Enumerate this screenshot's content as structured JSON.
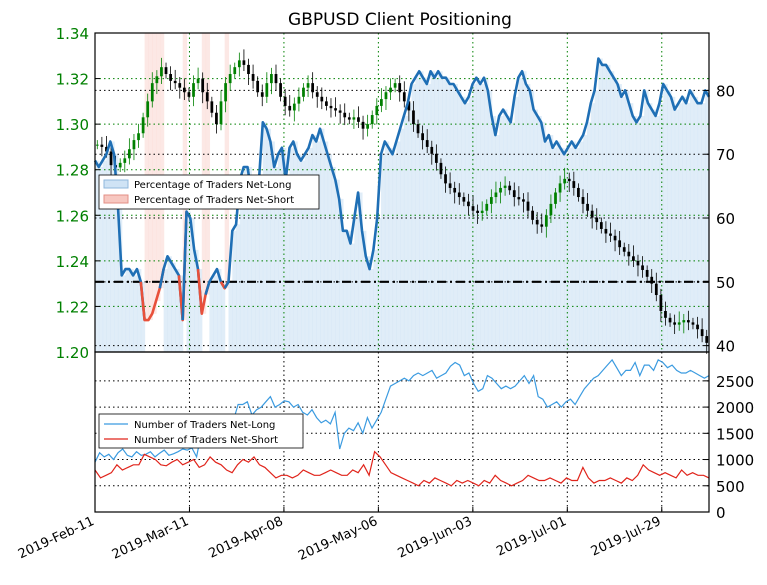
{
  "chart_data": [
    {
      "type": "line",
      "title": "GBPUSD Client Positioning",
      "x_ticks": [
        "2019-Feb-11",
        "2019-Mar-11",
        "2019-Apr-08",
        "2019-May-06",
        "2019-Jun-03",
        "2019-Jul-01",
        "2019-Jul-29"
      ],
      "x_range": [
        "2019-Feb-11",
        "2019-Aug-12"
      ],
      "left_axis": {
        "ticks": [
          "1.20",
          "1.22",
          "1.24",
          "1.26",
          "1.28",
          "1.30",
          "1.32",
          "1.34"
        ],
        "ylim": [
          1.2,
          1.34
        ],
        "color": "#008000"
      },
      "right_axis": {
        "ticks": [
          "40",
          "50",
          "60",
          "70",
          "80"
        ],
        "ylim": [
          39,
          89
        ]
      },
      "reference_line": {
        "value": 50,
        "style": "dash-dot"
      },
      "legend": {
        "placement": "left",
        "entries": [
          "Percentage of Traders Net-Long",
          "Percentage of Traders Net-Short"
        ]
      },
      "colors": {
        "net_long": "#1f6fb5",
        "net_short": "#e8503a",
        "bull": "#008000",
        "bear": "#000000",
        "long_fill": "#d6e7f5",
        "short_fill": "#fbe0dc"
      },
      "price": [
        1.291,
        1.29,
        1.288,
        1.282,
        1.281,
        1.283,
        1.285,
        1.289,
        1.293,
        1.296,
        1.303,
        1.31,
        1.318,
        1.321,
        1.325,
        1.322,
        1.319,
        1.318,
        1.316,
        1.314,
        1.312,
        1.318,
        1.32,
        1.314,
        1.31,
        1.305,
        1.3,
        1.31,
        1.318,
        1.322,
        1.325,
        1.328,
        1.326,
        1.322,
        1.319,
        1.314,
        1.312,
        1.318,
        1.322,
        1.318,
        1.312,
        1.308,
        1.306,
        1.309,
        1.312,
        1.316,
        1.318,
        1.314,
        1.312,
        1.31,
        1.308,
        1.307,
        1.306,
        1.305,
        1.303,
        1.302,
        1.303,
        1.301,
        1.298,
        1.3,
        1.304,
        1.308,
        1.311,
        1.314,
        1.316,
        1.318,
        1.314,
        1.31,
        1.306,
        1.3,
        1.296,
        1.293,
        1.29,
        1.287,
        1.283,
        1.278,
        1.274,
        1.272,
        1.27,
        1.268,
        1.266,
        1.264,
        1.262,
        1.261,
        1.262,
        1.265,
        1.268,
        1.27,
        1.272,
        1.273,
        1.271,
        1.268,
        1.267,
        1.266,
        1.262,
        1.258,
        1.256,
        1.255,
        1.26,
        1.265,
        1.27,
        1.274,
        1.276,
        1.275,
        1.272,
        1.268,
        1.265,
        1.262,
        1.259,
        1.257,
        1.254,
        1.252,
        1.251,
        1.249,
        1.246,
        1.244,
        1.242,
        1.24,
        1.238,
        1.236,
        1.233,
        1.23,
        1.225,
        1.218,
        1.215,
        1.213,
        1.212,
        1.213,
        1.214,
        1.213,
        1.212,
        1.21,
        1.207,
        1.204
      ],
      "net_long_pct": [
        69,
        68,
        69,
        70,
        72,
        70,
        62,
        51,
        52,
        52,
        51,
        52,
        50,
        44,
        44,
        45,
        47,
        49,
        52,
        54,
        53,
        52,
        51,
        44,
        61,
        60,
        55,
        52,
        45,
        48,
        50,
        51,
        52,
        50,
        49,
        50,
        58,
        59,
        66,
        68,
        68,
        64,
        63,
        66,
        75,
        74,
        72,
        68,
        70,
        71,
        66,
        71,
        72,
        70,
        69,
        70,
        71,
        73,
        72,
        74,
        72,
        70,
        68,
        66,
        63,
        58,
        58,
        56,
        60,
        64,
        58,
        54,
        52,
        55,
        60,
        70,
        72,
        71,
        70,
        72,
        74,
        76,
        78,
        81,
        82,
        83,
        82,
        81,
        83,
        82,
        83,
        82,
        82,
        81,
        81,
        80,
        79,
        78,
        79,
        81,
        82,
        81,
        82,
        80,
        76,
        73,
        76,
        77,
        76,
        75,
        79,
        82,
        83,
        81,
        80,
        77,
        76,
        75,
        72,
        73,
        71,
        72,
        71,
        70,
        71,
        72,
        71,
        72,
        73,
        75,
        78,
        80,
        85,
        84,
        84,
        83,
        82,
        81,
        79,
        80,
        78,
        76,
        75,
        76,
        80,
        78,
        77,
        76,
        78,
        81,
        80,
        79,
        77,
        78,
        79,
        78,
        80,
        79,
        78,
        78,
        80,
        79
      ],
      "net_long_count": [
        950,
        1130,
        1050,
        1100,
        1000,
        1130,
        1200,
        1080,
        1050,
        1150,
        1080,
        1100,
        1150,
        1050,
        1120,
        1180,
        1080,
        1110,
        1150,
        1200,
        1180,
        1220,
        1050,
        1500,
        1400,
        1450,
        1300,
        1500,
        1480,
        1550,
        1750,
        2050,
        2050,
        2100,
        1850,
        1950,
        2000,
        2100,
        2200,
        2000,
        2050,
        2120,
        2100,
        2000,
        2050,
        1900,
        1850,
        1950,
        1800,
        1700,
        1750,
        1680,
        1900,
        1200,
        1500,
        1600,
        1550,
        1700,
        1500,
        1800,
        1600,
        1750,
        1900,
        2150,
        2400,
        2450,
        2500,
        2550,
        2500,
        2600,
        2650,
        2600,
        2650,
        2700,
        2550,
        2600,
        2650,
        2780,
        2850,
        2800,
        2600,
        2650,
        2450,
        2300,
        2350,
        2600,
        2550,
        2450,
        2350,
        2400,
        2350,
        2400,
        2500,
        2600,
        2450,
        2600,
        2200,
        2150,
        2000,
        2050,
        2100,
        2000,
        2100,
        2150,
        2050,
        2200,
        2350,
        2450,
        2550,
        2600,
        2700,
        2800,
        2900,
        2750,
        2600,
        2700,
        2700,
        2850,
        2600,
        2800,
        2800,
        2700,
        2900,
        2850,
        2750,
        2800,
        2700,
        2650,
        2650,
        2700,
        2650,
        2600,
        2550,
        2600
      ],
      "net_short_count": [
        800,
        650,
        700,
        750,
        900,
        800,
        850,
        900,
        900,
        1100,
        1050,
        1000,
        900,
        880,
        950,
        1000,
        900,
        950,
        1000,
        850,
        900,
        1050,
        950,
        900,
        800,
        750,
        900,
        1000,
        950,
        1050,
        900,
        850,
        750,
        650,
        700,
        700,
        650,
        700,
        800,
        750,
        700,
        700,
        750,
        800,
        750,
        700,
        700,
        800,
        750,
        900,
        700,
        1150,
        1050,
        900,
        750,
        700,
        650,
        600,
        550,
        500,
        600,
        550,
        650,
        600,
        550,
        500,
        600,
        550,
        600,
        550,
        500,
        600,
        550,
        700,
        600,
        550,
        500,
        550,
        600,
        700,
        650,
        600,
        600,
        650,
        600,
        550,
        650,
        600,
        600,
        850,
        650,
        550,
        600,
        600,
        650,
        600,
        550,
        650,
        600,
        700,
        900,
        800,
        750,
        700,
        750,
        700,
        650,
        800,
        700,
        750,
        700,
        700,
        650
      ]
    }
  ]
}
